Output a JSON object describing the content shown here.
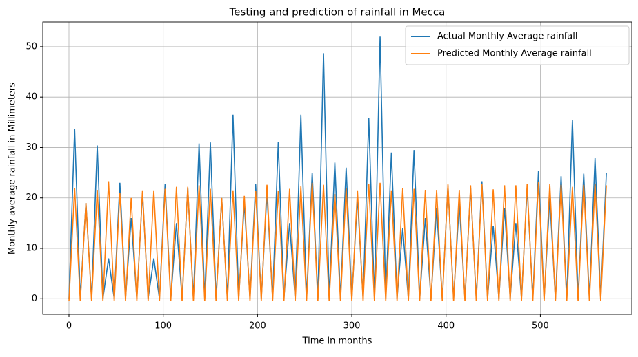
{
  "chart_data": {
    "type": "line",
    "title": "Testing and prediction of rainfall in Mecca",
    "x_label": "Time in months",
    "y_label": "Monthly average rainfall in Millimeters",
    "x": [
      0,
      6,
      12,
      18,
      24,
      30,
      36,
      42,
      48,
      54,
      60,
      66,
      72,
      78,
      84,
      90,
      96,
      102,
      108,
      114,
      120,
      126,
      132,
      138,
      144,
      150,
      156,
      162,
      168,
      174,
      180,
      186,
      192,
      198,
      204,
      210,
      216,
      222,
      228,
      234,
      240,
      246,
      252,
      258,
      264,
      270,
      276,
      282,
      288,
      294,
      300,
      306,
      312,
      318,
      324,
      330,
      336,
      342,
      348,
      354,
      360,
      366,
      372,
      378,
      384,
      390,
      396,
      402,
      408,
      414,
      420,
      426,
      432,
      438,
      444,
      450,
      456,
      462,
      468,
      474,
      480,
      486,
      492,
      498,
      504,
      510,
      516,
      522,
      528,
      534,
      540,
      546,
      552,
      558,
      564,
      570
    ],
    "series": [
      {
        "name": "Actual Monthly Average rainfall",
        "color": "#1f77b4",
        "values": [
          0,
          33.7,
          0,
          19,
          0,
          30.4,
          0,
          8,
          0,
          23,
          0,
          16,
          0,
          21,
          0,
          8,
          0,
          22.8,
          0,
          15,
          0,
          22,
          0,
          30.8,
          0,
          31,
          0,
          20,
          0,
          36.5,
          0,
          19,
          0,
          22.7,
          0,
          21,
          0,
          31.1,
          0,
          15,
          0,
          36.5,
          0,
          25,
          0,
          48.7,
          0,
          27,
          0,
          26,
          0,
          20,
          0,
          35.9,
          0,
          52,
          0,
          29,
          0,
          14,
          0,
          29.5,
          0,
          16,
          0,
          18,
          0,
          22.5,
          0,
          19,
          0,
          22,
          0,
          23.3,
          0,
          14.5,
          0,
          18,
          0,
          15,
          0,
          22,
          0,
          25.3,
          0,
          20,
          0,
          24.3,
          0,
          35.5,
          0,
          24.8,
          0,
          27.9,
          0,
          24.9
        ]
      },
      {
        "name": "Predicted Monthly Average rainfall",
        "color": "#ff7f0e",
        "values": [
          -0.5,
          22,
          -0.5,
          19,
          -0.5,
          21.6,
          -0.5,
          23.3,
          -0.5,
          21,
          -0.5,
          20,
          -0.5,
          21.5,
          -0.5,
          21.5,
          -0.5,
          21.8,
          -0.5,
          22.2,
          -0.5,
          22.2,
          -0.5,
          22.5,
          -0.5,
          21.8,
          -0.5,
          20,
          -0.5,
          21.5,
          -0.5,
          20.4,
          -0.5,
          21.4,
          -0.5,
          22.6,
          -0.5,
          21.4,
          -0.5,
          21.8,
          -0.5,
          22.3,
          -0.5,
          23,
          -0.5,
          22.6,
          -0.5,
          20.8,
          -0.5,
          21.9,
          -0.5,
          21.5,
          -0.5,
          22.8,
          -0.5,
          23,
          -0.5,
          21.5,
          -0.5,
          22,
          -0.5,
          21.8,
          -0.5,
          21.6,
          -0.5,
          21.6,
          -0.5,
          22.7,
          -0.5,
          21.6,
          -0.5,
          22.5,
          -0.5,
          22.7,
          -0.5,
          21.7,
          -0.5,
          22.5,
          -0.5,
          22.5,
          -0.5,
          22.8,
          -0.5,
          23.1,
          -0.5,
          22.8,
          -0.5,
          22.6,
          -0.5,
          22.2,
          -0.5,
          22.6,
          -0.5,
          22.8,
          -0.5,
          22.5
        ]
      }
    ],
    "xlim": [
      -27.8,
      597
    ],
    "ylim": [
      -3.1,
      54.9
    ],
    "xticks": [
      0,
      100,
      200,
      300,
      400,
      500
    ],
    "yticks": [
      0,
      10,
      20,
      30,
      40,
      50
    ],
    "grid": true,
    "legend": "upper right"
  }
}
